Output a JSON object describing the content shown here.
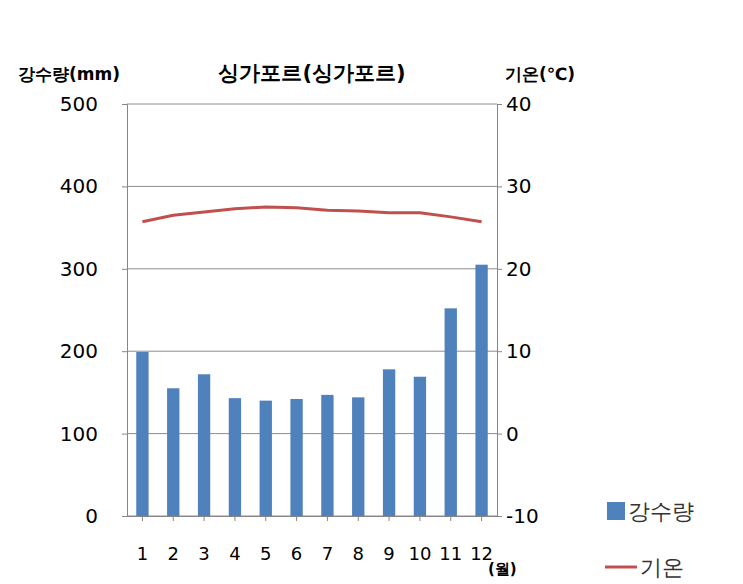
{
  "chart_data": {
    "type": "combo",
    "title": "싱가포르(싱가포르)",
    "xlabel": "(월)",
    "ylabel": "강수량(mm)",
    "y2label": "기온(℃)",
    "categories": [
      "1",
      "2",
      "3",
      "4",
      "5",
      "6",
      "7",
      "8",
      "9",
      "10",
      "11",
      "12"
    ],
    "series": [
      {
        "name": "강수량",
        "type": "bar",
        "axis": "y",
        "color": "#4f81bd",
        "values": [
          199,
          155,
          172,
          143,
          140,
          142,
          147,
          144,
          178,
          169,
          252,
          305
        ]
      },
      {
        "name": "기온",
        "type": "line",
        "axis": "y2",
        "color": "#c0504d",
        "line_style": "solid",
        "values": [
          25.7,
          26.5,
          26.9,
          27.3,
          27.5,
          27.4,
          27.1,
          27.0,
          26.8,
          26.8,
          26.3,
          25.7
        ]
      }
    ],
    "ylim": [
      0,
      500
    ],
    "yticks": [
      0,
      100,
      200,
      300,
      400,
      500
    ],
    "y2lim": [
      -10,
      40
    ],
    "y2ticks": [
      -10,
      0,
      10,
      20,
      30,
      40
    ],
    "grid": true,
    "legend": "right"
  }
}
